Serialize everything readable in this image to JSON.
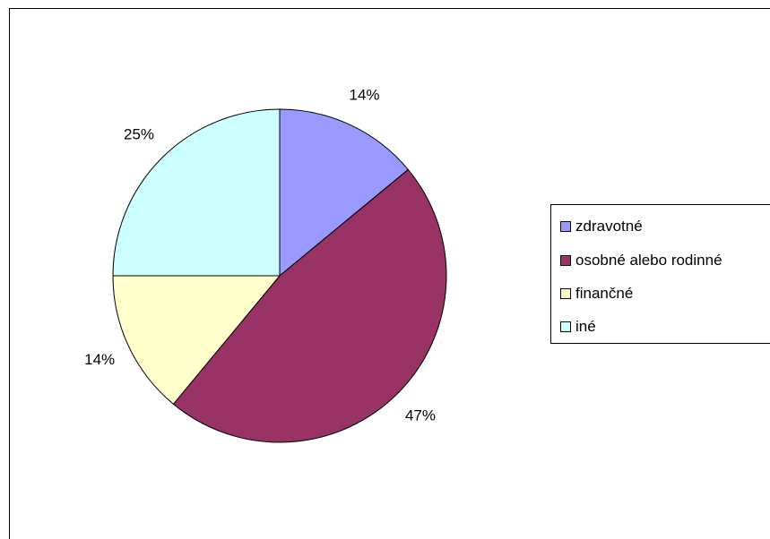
{
  "chart_data": {
    "type": "pie",
    "title": "",
    "categories": [
      "zdravotné",
      "osobné alebo rodinné",
      "finančné",
      "iné"
    ],
    "values": [
      14,
      47,
      14,
      25
    ],
    "data_labels": [
      "14%",
      "47%",
      "14%",
      "25%"
    ],
    "colors": [
      "#9999ff",
      "#993366",
      "#ffffcc",
      "#ccffff"
    ],
    "start_angle_deg": 0,
    "direction": "clockwise",
    "legend_placement": "right"
  }
}
